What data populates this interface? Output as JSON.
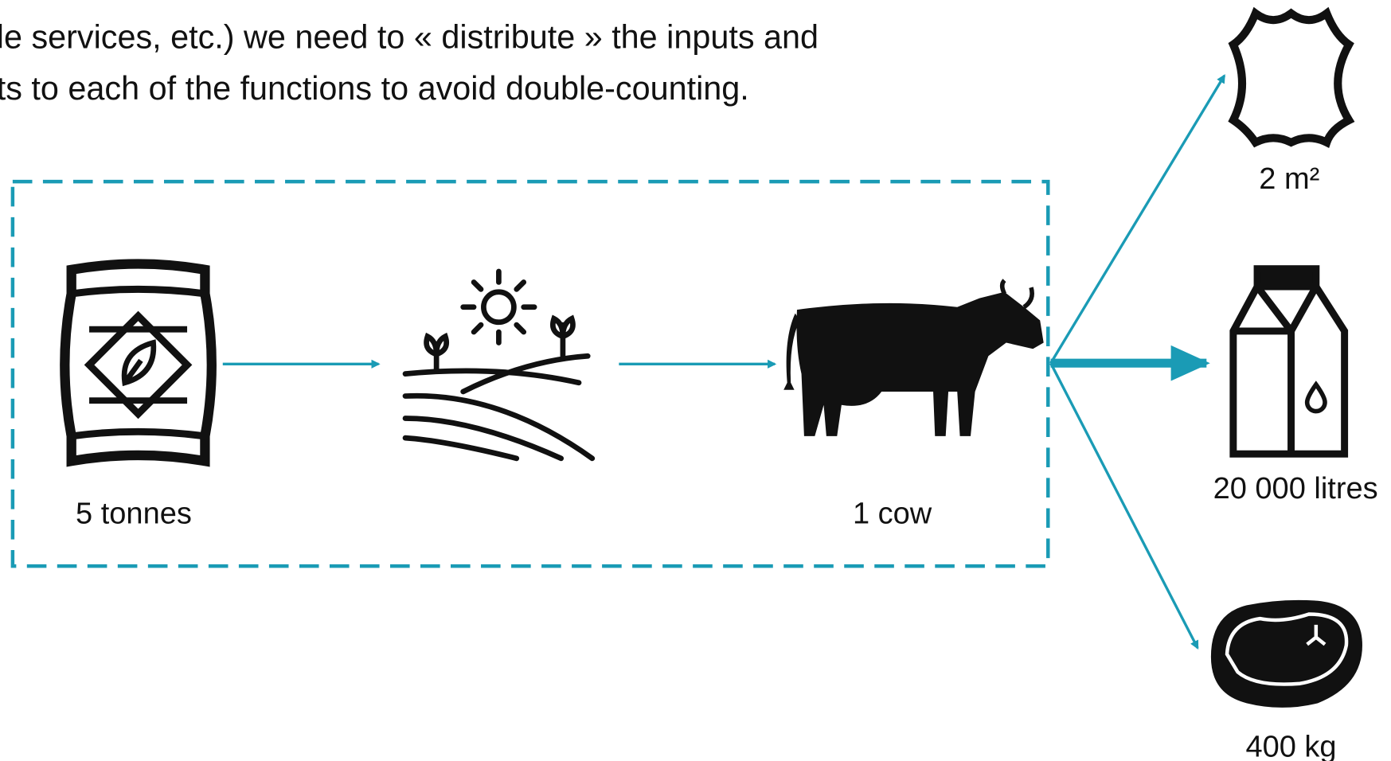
{
  "text_lines": [
    "le services, etc.) we need to « distribute » the inputs and",
    "ts to each of the functions to avoid double-counting."
  ],
  "labels": {
    "feed": "5 tonnes",
    "cow": "1 cow",
    "leather": "2 m²",
    "milk": "20 000 litres",
    "meat": "400 kg"
  }
}
